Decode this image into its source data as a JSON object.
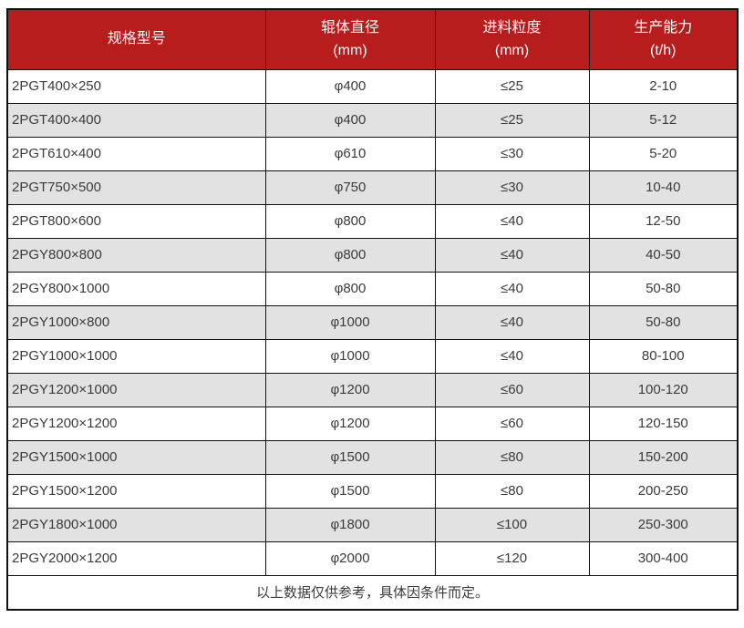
{
  "chart_data": {
    "type": "table",
    "columns": [
      {
        "label": "规格型号",
        "unit": ""
      },
      {
        "label": "辊体直径",
        "unit": "(mm)"
      },
      {
        "label": "进料粒度",
        "unit": "(mm)"
      },
      {
        "label": "生产能力",
        "unit": "(t/h)"
      }
    ],
    "rows": [
      [
        "2PGT400×250",
        "φ400",
        "≤25",
        "2-10"
      ],
      [
        "2PGT400×400",
        "φ400",
        "≤25",
        "5-12"
      ],
      [
        "2PGT610×400",
        "φ610",
        "≤30",
        "5-20"
      ],
      [
        "2PGT750×500",
        "φ750",
        "≤30",
        "10-40"
      ],
      [
        "2PGT800×600",
        "φ800",
        "≤40",
        "12-50"
      ],
      [
        "2PGY800×800",
        "φ800",
        "≤40",
        "40-50"
      ],
      [
        "2PGY800×1000",
        "φ800",
        "≤40",
        "50-80"
      ],
      [
        "2PGY1000×800",
        "φ1000",
        "≤40",
        "50-80"
      ],
      [
        "2PGY1000×1000",
        "φ1000",
        "≤40",
        "80-100"
      ],
      [
        "2PGY1200×1000",
        "φ1200",
        "≤60",
        "100-120"
      ],
      [
        "2PGY1200×1200",
        "φ1200",
        "≤60",
        "120-150"
      ],
      [
        "2PGY1500×1000",
        "φ1500",
        "≤80",
        "150-200"
      ],
      [
        "2PGY1500×1200",
        "φ1500",
        "≤80",
        "200-250"
      ],
      [
        "2PGY1800×1000",
        "φ1800",
        "≤100",
        "250-300"
      ],
      [
        "2PGY2000×1200",
        "φ2000",
        "≤120",
        "300-400"
      ]
    ],
    "footer_note": "以上数据仅供参考，具体因条件而定。",
    "colors": {
      "header_bg": "#b81d1d",
      "header_text": "#ffffff",
      "row_bg": "#ffffff",
      "row_alt_bg": "#e2e2e2",
      "border": "#111111",
      "text": "#3b3b3b"
    }
  }
}
